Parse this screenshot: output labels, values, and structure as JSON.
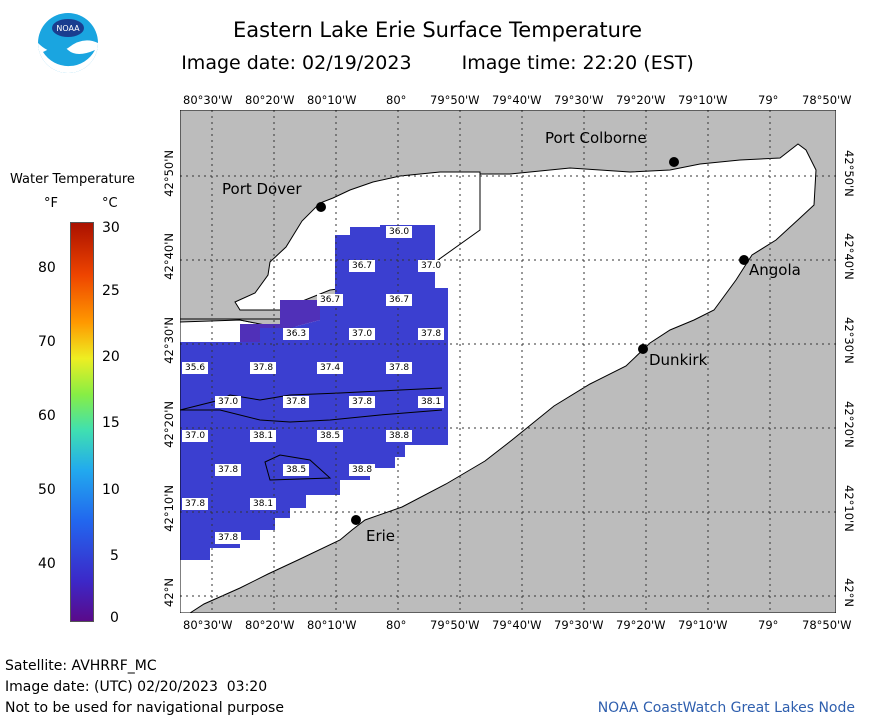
{
  "header": {
    "title": "Eastern Lake Erie Surface Temperature",
    "image_date": "Image date: 02/19/2023",
    "image_time": "Image time: 22:20 (EST)"
  },
  "logo": {
    "text": "NOAA"
  },
  "legend": {
    "title": "Water Temperature",
    "unit_f": "°F",
    "unit_c": "°C",
    "f_labels": [
      "80",
      "70",
      "60",
      "50",
      "40"
    ],
    "c_labels": [
      "30",
      "25",
      "20",
      "15",
      "10",
      "5",
      "0"
    ]
  },
  "map": {
    "top_lon_labels": [
      "80°30'W",
      "80°20'W",
      "80°10'W",
      "80°",
      "79°50'W",
      "79°40'W",
      "79°30'W",
      "79°20'W",
      "79°10'W",
      "79°",
      "78°50'W"
    ],
    "bottom_lon_labels": [
      "80°30'W",
      "80°20'W",
      "80°10'W",
      "80°",
      "79°50'W",
      "79°40'W",
      "79°30'W",
      "79°20'W",
      "79°10'W",
      "79°",
      "78°50'W"
    ],
    "lat_labels": [
      "42°50'N",
      "42°40'N",
      "42°30'N",
      "42°20'N",
      "42°10'N",
      "42°N"
    ],
    "cities": [
      {
        "name": "Port Colborne"
      },
      {
        "name": "Port Dover"
      },
      {
        "name": "Angola"
      },
      {
        "name": "Dunkirk"
      },
      {
        "name": "Erie"
      }
    ],
    "temperatures": [
      "36.0",
      "36.7",
      "37.0",
      "36.7",
      "36.7",
      "36.3",
      "37.0",
      "37.8",
      "35.6",
      "37.8",
      "37.4",
      "37.8",
      "37.0",
      "37.8",
      "37.8",
      "38.1",
      "37.0",
      "38.1",
      "38.5",
      "38.8",
      "37.8",
      "38.5",
      "38.8",
      "37.8",
      "38.1",
      "37.8"
    ]
  },
  "footer": {
    "satellite": "Satellite: AVHRRF_MC",
    "utc_date": "Image date: (UTC) 02/20/2023  03:20",
    "disclaimer": "Not to be used for navigational purpose",
    "credit": "NOAA CoastWatch Great Lakes Node"
  }
}
